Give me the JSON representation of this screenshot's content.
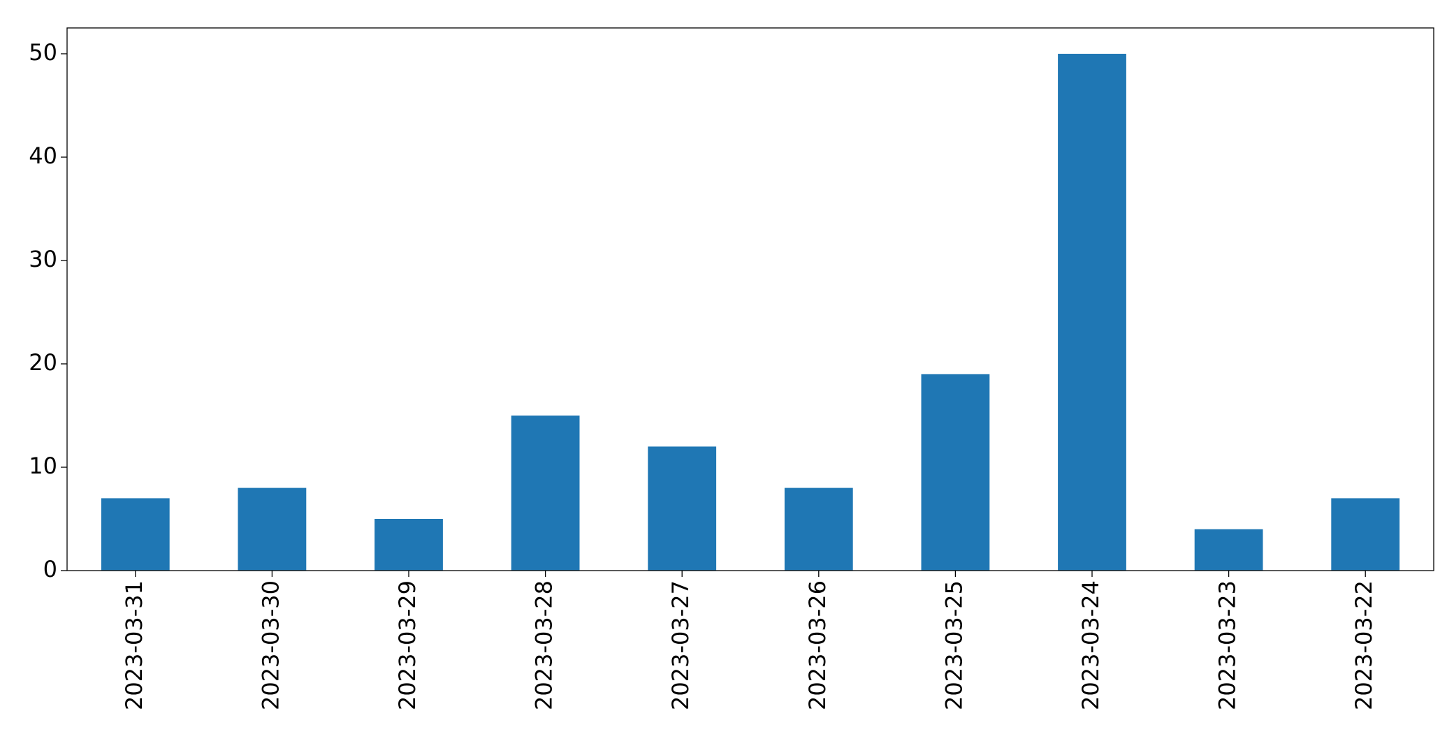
{
  "chart_data": {
    "type": "bar",
    "categories": [
      "2023-03-31",
      "2023-03-30",
      "2023-03-29",
      "2023-03-28",
      "2023-03-27",
      "2023-03-26",
      "2023-03-25",
      "2023-03-24",
      "2023-03-23",
      "2023-03-22"
    ],
    "values": [
      7,
      8,
      5,
      15,
      12,
      8,
      19,
      50,
      4,
      7
    ],
    "color": "#1f77b4",
    "ylim": [
      0,
      52.5
    ],
    "yticks": [
      0,
      10,
      20,
      30,
      40,
      50
    ]
  }
}
